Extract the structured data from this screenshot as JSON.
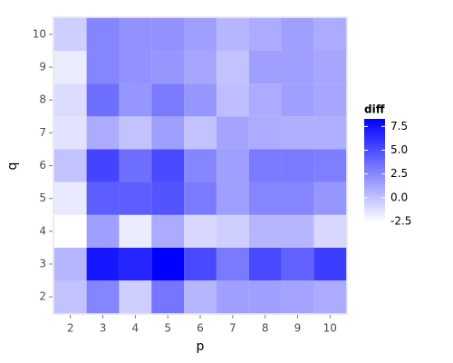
{
  "chart_data": {
    "type": "heatmap",
    "x_label": "p",
    "y_label": "q",
    "x": [
      2,
      3,
      4,
      5,
      6,
      7,
      8,
      9,
      10
    ],
    "y": [
      2,
      3,
      4,
      5,
      6,
      7,
      8,
      9,
      10
    ],
    "values": [
      [
        0.0,
        2.6,
        -0.5,
        3.3,
        0.5,
        1.5,
        1.5,
        1.3,
        1.0
      ],
      [
        0.5,
        7.3,
        6.7,
        8.3,
        5.2,
        3.1,
        5.2,
        4.1,
        5.7
      ],
      [
        -2.6,
        1.5,
        -1.8,
        1.0,
        -0.9,
        -0.5,
        0.5,
        0.5,
        -0.9
      ],
      [
        -1.7,
        4.3,
        4.3,
        4.7,
        3.1,
        1.5,
        2.6,
        2.6,
        1.9
      ],
      [
        0.0,
        5.4,
        3.6,
        5.2,
        2.6,
        1.5,
        3.1,
        3.1,
        2.9
      ],
      [
        -1.4,
        1.0,
        0.0,
        1.5,
        0.0,
        1.3,
        1.0,
        0.8,
        0.8
      ],
      [
        -1.1,
        3.6,
        1.9,
        3.1,
        1.9,
        0.2,
        1.0,
        1.5,
        1.2
      ],
      [
        -1.8,
        2.6,
        2.1,
        1.9,
        1.2,
        0.0,
        1.5,
        1.5,
        1.2
      ],
      [
        -0.5,
        2.6,
        2.1,
        2.1,
        1.5,
        0.5,
        1.0,
        1.5,
        1.0
      ]
    ],
    "xlim": [
      1.45,
      10.55
    ],
    "ylim": [
      1.45,
      10.55
    ],
    "xticks": [
      2,
      3,
      4,
      5,
      6,
      7,
      8,
      9,
      10
    ],
    "yticks": [
      2,
      3,
      4,
      5,
      6,
      7,
      8,
      9,
      10
    ],
    "legend_title": "diff",
    "low_color": "#ffffff",
    "high_color": "#0000ff",
    "zlim": [
      -2.6,
      8.3
    ],
    "zticks": [
      {
        "value": -2.5,
        "label": "-2.5"
      },
      {
        "value": 0,
        "label": "0.0"
      },
      {
        "value": 2.5,
        "label": "2.5"
      },
      {
        "value": 5,
        "label": "5.0"
      },
      {
        "value": 7.5,
        "label": "7.5"
      }
    ],
    "background": "#ebebeb"
  }
}
